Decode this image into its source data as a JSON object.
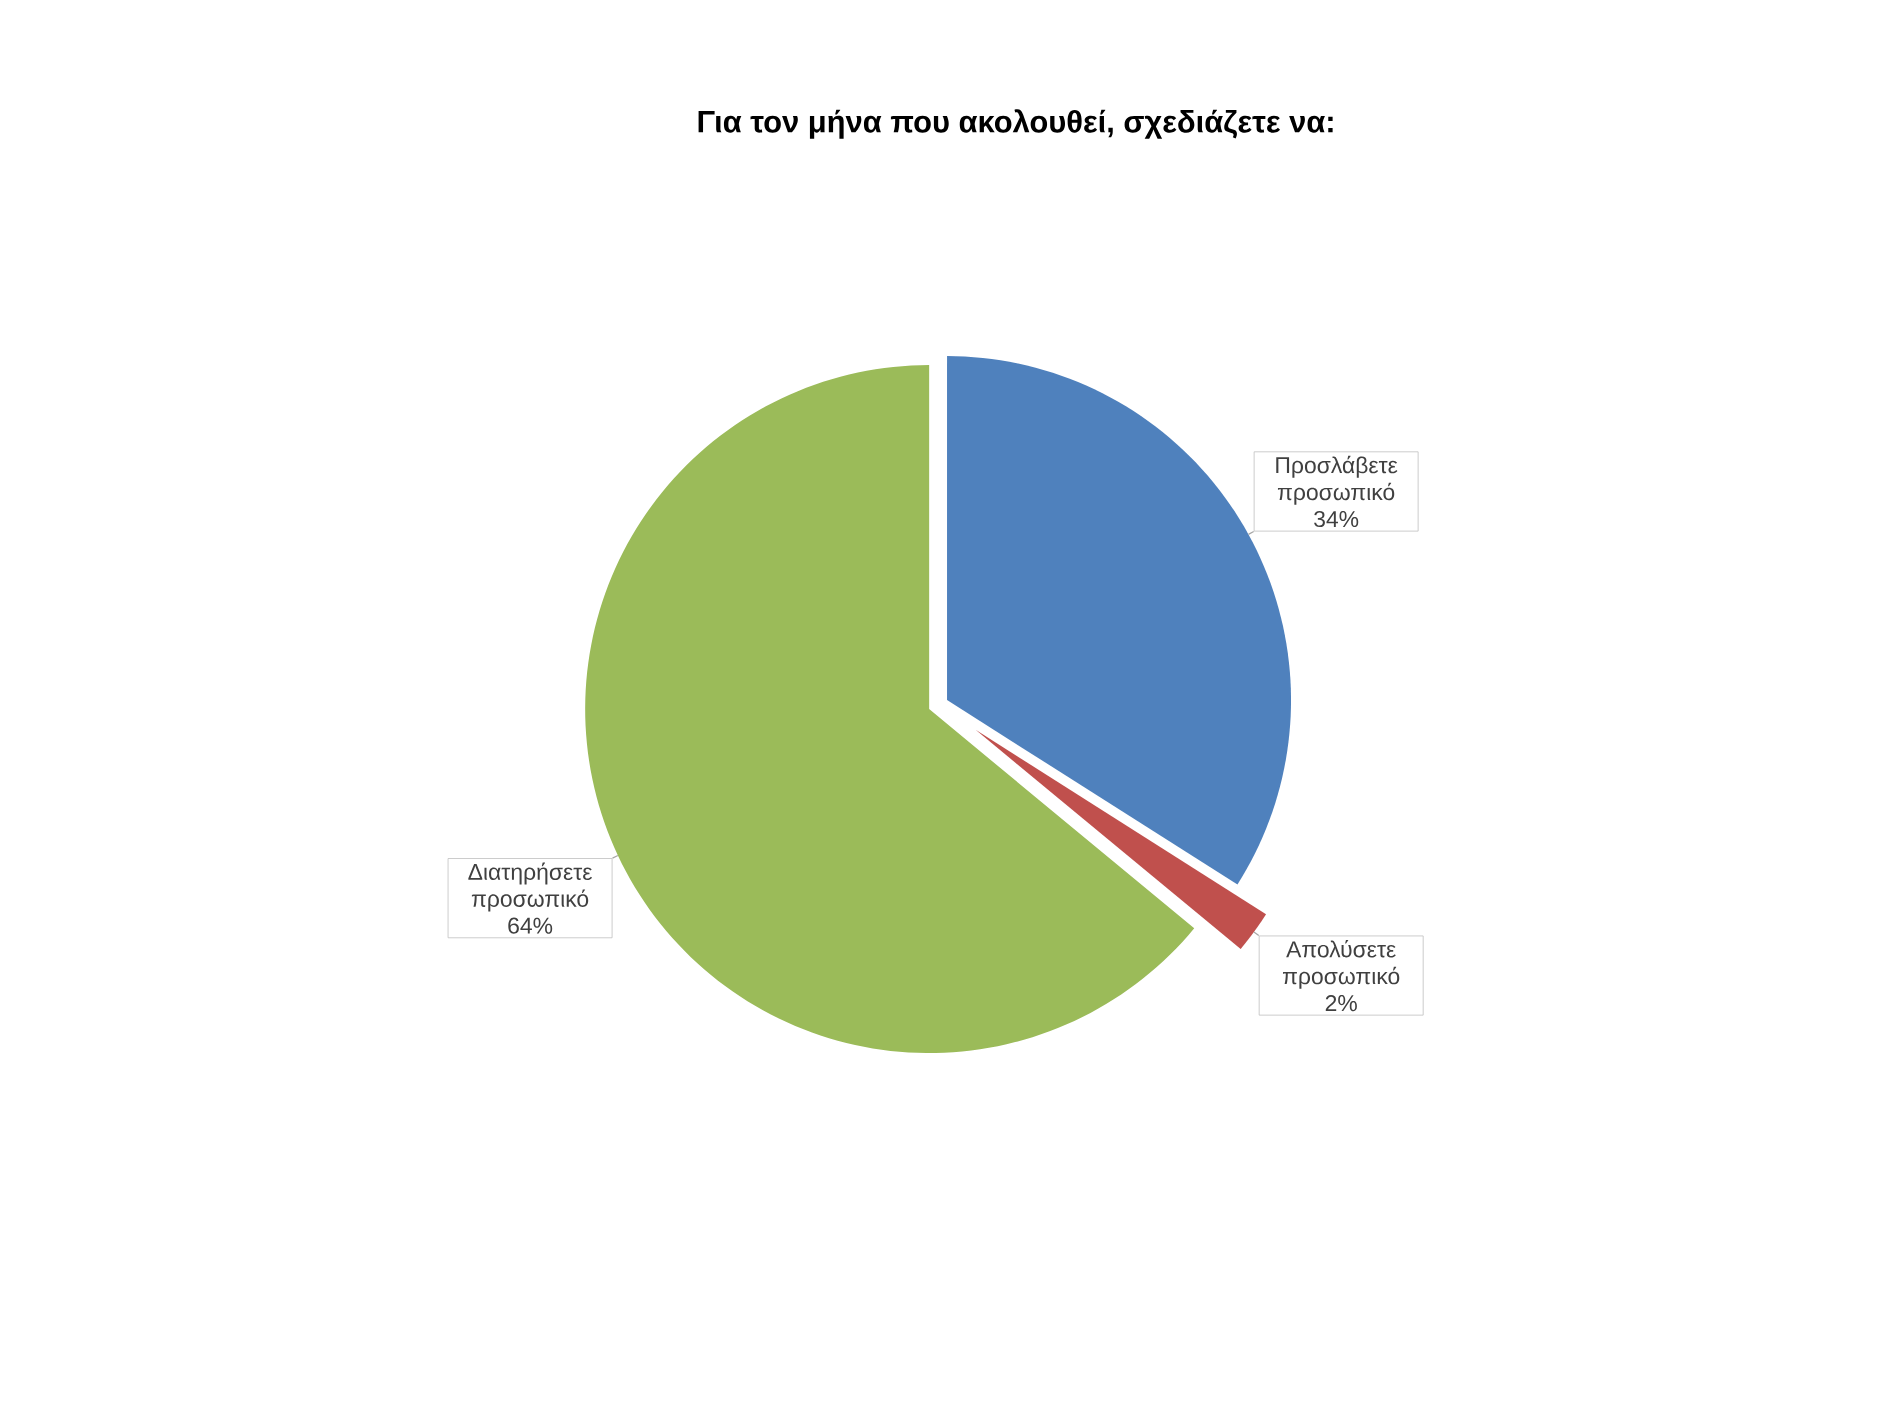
{
  "chart_data": {
    "type": "pie",
    "title": "Για τον μήνα που ακολουθεί, σχεδιάζετε να:",
    "categories": [
      "Προσλάβετε προσωπικό",
      "Απολύσετε προσωπικό",
      "Διατηρήσετε προσωπικό"
    ],
    "values": [
      34,
      2,
      64
    ],
    "value_labels": [
      "34%",
      "2%",
      "64%"
    ],
    "colors": [
      "#4f81bd",
      "#c0504d",
      "#9bbb59"
    ]
  }
}
